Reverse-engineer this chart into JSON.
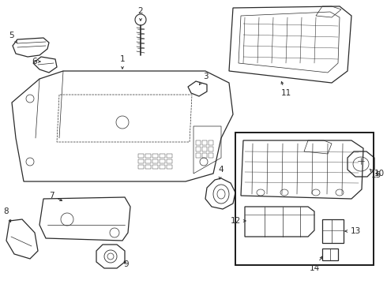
{
  "background_color": "#ffffff",
  "line_color": "#2a2a2a",
  "box_color": "#1a1a1a",
  "figsize": [
    4.9,
    3.6
  ],
  "dpi": 100,
  "label_fontsize": 7.5,
  "arrow_lw": 0.7
}
